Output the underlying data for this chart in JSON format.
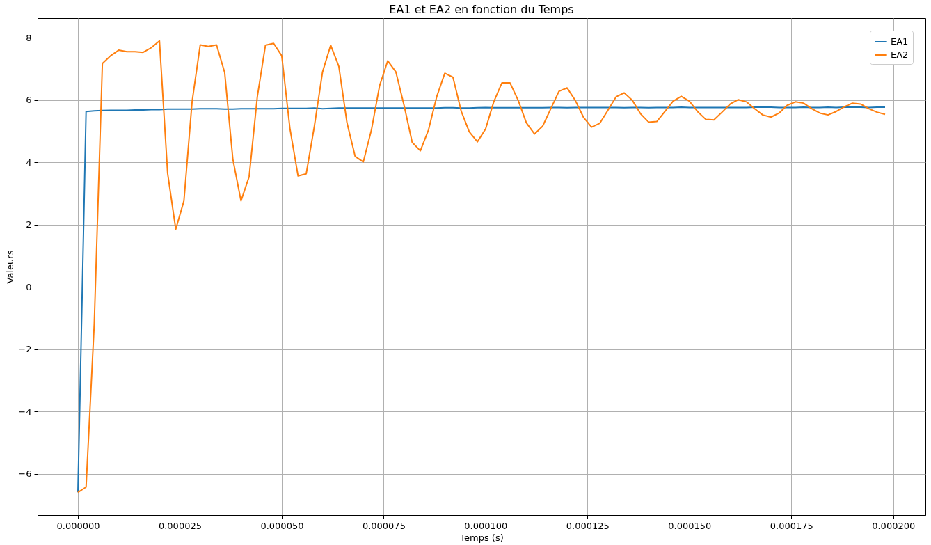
{
  "chart_data": {
    "type": "line",
    "title": "EA1 et EA2 en fonction du Temps",
    "xlabel": "Temps (s)",
    "ylabel": "Valeurs",
    "x": [
      0,
      2e-06,
      4e-06,
      6e-06,
      8e-06,
      1e-05,
      1.2e-05,
      1.4e-05,
      1.6e-05,
      1.8e-05,
      2e-05,
      2.2e-05,
      2.4e-05,
      2.6e-05,
      2.8e-05,
      3e-05,
      3.2e-05,
      3.4e-05,
      3.6e-05,
      3.8e-05,
      4e-05,
      4.2e-05,
      4.4e-05,
      4.6e-05,
      4.8e-05,
      5e-05,
      5.2e-05,
      5.4e-05,
      5.6e-05,
      5.8e-05,
      6e-05,
      6.2e-05,
      6.4e-05,
      6.6e-05,
      6.8e-05,
      7e-05,
      7.2e-05,
      7.4e-05,
      7.6e-05,
      7.8e-05,
      8e-05,
      8.2e-05,
      8.4e-05,
      8.6e-05,
      8.8e-05,
      9e-05,
      9.2e-05,
      9.4e-05,
      9.6e-05,
      9.8e-05,
      0.0001,
      0.000102,
      0.000104,
      0.000106,
      0.000108,
      0.00011,
      0.000112,
      0.000114,
      0.000116,
      0.000118,
      0.00012,
      0.000122,
      0.000124,
      0.000126,
      0.000128,
      0.00013,
      0.000132,
      0.000134,
      0.000136,
      0.000138,
      0.00014,
      0.000142,
      0.000144,
      0.000146,
      0.000148,
      0.00015,
      0.000152,
      0.000154,
      0.000156,
      0.000158,
      0.00016,
      0.000162,
      0.000164,
      0.000166,
      0.000168,
      0.00017,
      0.000172,
      0.000174,
      0.000176,
      0.000178,
      0.00018,
      0.000182,
      0.000184,
      0.000186,
      0.000188,
      0.00019,
      0.000192,
      0.000194,
      0.000196,
      0.000198
    ],
    "series": [
      {
        "name": "EA1",
        "color": "#1f77b4",
        "values": [
          -6.6,
          5.63,
          5.65,
          5.66,
          5.67,
          5.67,
          5.67,
          5.68,
          5.68,
          5.69,
          5.69,
          5.71,
          5.71,
          5.71,
          5.71,
          5.72,
          5.72,
          5.72,
          5.71,
          5.71,
          5.72,
          5.72,
          5.72,
          5.72,
          5.72,
          5.73,
          5.73,
          5.73,
          5.73,
          5.74,
          5.72,
          5.73,
          5.74,
          5.74,
          5.74,
          5.74,
          5.74,
          5.74,
          5.74,
          5.74,
          5.74,
          5.74,
          5.74,
          5.74,
          5.74,
          5.75,
          5.75,
          5.74,
          5.74,
          5.75,
          5.76,
          5.75,
          5.75,
          5.75,
          5.75,
          5.75,
          5.75,
          5.75,
          5.76,
          5.76,
          5.75,
          5.76,
          5.76,
          5.76,
          5.76,
          5.76,
          5.76,
          5.75,
          5.76,
          5.76,
          5.75,
          5.76,
          5.76,
          5.76,
          5.77,
          5.76,
          5.76,
          5.76,
          5.76,
          5.76,
          5.76,
          5.76,
          5.76,
          5.77,
          5.77,
          5.77,
          5.76,
          5.76,
          5.76,
          5.77,
          5.76,
          5.76,
          5.77,
          5.76,
          5.77,
          5.77,
          5.77,
          5.76,
          5.77,
          5.77
        ]
      },
      {
        "name": "EA2",
        "color": "#ff7f0e",
        "values": [
          -6.6,
          -6.43,
          -1.2,
          7.17,
          7.42,
          7.6,
          7.55,
          7.55,
          7.53,
          7.68,
          7.9,
          3.65,
          1.85,
          2.76,
          5.94,
          7.77,
          7.72,
          7.77,
          6.88,
          4.1,
          2.76,
          3.54,
          6.1,
          7.76,
          7.82,
          7.42,
          5.09,
          3.56,
          3.63,
          5.16,
          6.9,
          7.76,
          7.08,
          5.27,
          4.19,
          4.01,
          5.04,
          6.46,
          7.26,
          6.9,
          5.83,
          4.64,
          4.37,
          5.04,
          6.1,
          6.86,
          6.73,
          5.65,
          4.98,
          4.66,
          5.07,
          5.94,
          6.55,
          6.55,
          5.99,
          5.27,
          4.91,
          5.16,
          5.72,
          6.28,
          6.39,
          5.99,
          5.45,
          5.13,
          5.25,
          5.67,
          6.1,
          6.23,
          5.99,
          5.56,
          5.29,
          5.31,
          5.63,
          5.96,
          6.12,
          5.96,
          5.63,
          5.38,
          5.36,
          5.61,
          5.87,
          6.01,
          5.94,
          5.72,
          5.52,
          5.45,
          5.58,
          5.83,
          5.94,
          5.9,
          5.72,
          5.58,
          5.52,
          5.63,
          5.78,
          5.9,
          5.87,
          5.72,
          5.61,
          5.54
        ]
      }
    ],
    "xlim": [
      -9.9e-06,
      0.0002079
    ],
    "xticks": [
      {
        "value": 0,
        "label": "0.000000"
      },
      {
        "value": 2.5e-05,
        "label": "0.000025"
      },
      {
        "value": 5e-05,
        "label": "0.000050"
      },
      {
        "value": 7.5e-05,
        "label": "0.000075"
      },
      {
        "value": 0.0001,
        "label": "0.000100"
      },
      {
        "value": 0.000125,
        "label": "0.000125"
      },
      {
        "value": 0.00015,
        "label": "0.000150"
      },
      {
        "value": 0.000175,
        "label": "0.000175"
      },
      {
        "value": 0.0002,
        "label": "0.000200"
      }
    ],
    "ylim": [
      -7.33,
      8.63
    ],
    "yticks": [
      {
        "value": -6,
        "label": "−6"
      },
      {
        "value": -4,
        "label": "−4"
      },
      {
        "value": -2,
        "label": "−2"
      },
      0,
      2,
      4,
      6,
      8
    ],
    "grid": true,
    "legend": "top right"
  }
}
